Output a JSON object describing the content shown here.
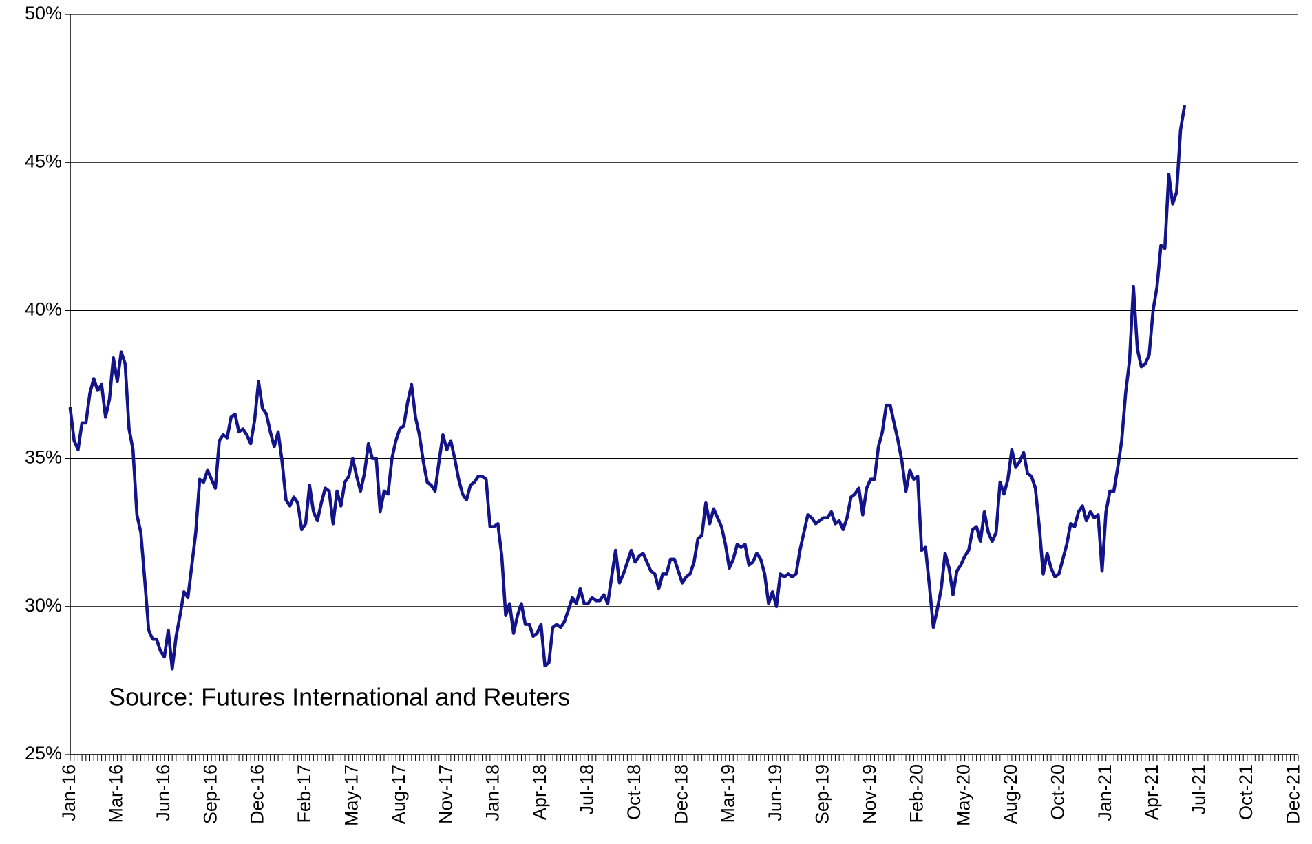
{
  "chart_data": {
    "type": "line",
    "annotation": "Source: Futures International and Reuters",
    "categories": [
      "Jan-16",
      null,
      null,
      null,
      null,
      null,
      null,
      null,
      null,
      null,
      null,
      null,
      "Mar-16",
      null,
      null,
      null,
      null,
      null,
      null,
      null,
      null,
      null,
      null,
      null,
      "Jun-16",
      null,
      null,
      null,
      null,
      null,
      null,
      null,
      null,
      null,
      null,
      null,
      "Sep-16",
      null,
      null,
      null,
      null,
      null,
      null,
      null,
      null,
      null,
      null,
      null,
      "Dec-16",
      null,
      null,
      null,
      null,
      null,
      null,
      null,
      null,
      null,
      null,
      null,
      "Feb-17",
      null,
      null,
      null,
      null,
      null,
      null,
      null,
      null,
      null,
      null,
      null,
      "May-17",
      null,
      null,
      null,
      null,
      null,
      null,
      null,
      null,
      null,
      null,
      null,
      "Aug-17",
      null,
      null,
      null,
      null,
      null,
      null,
      null,
      null,
      null,
      null,
      null,
      "Nov-17",
      null,
      null,
      null,
      null,
      null,
      null,
      null,
      null,
      null,
      null,
      null,
      "Jan-18",
      null,
      null,
      null,
      null,
      null,
      null,
      null,
      null,
      null,
      null,
      null,
      "Apr-18",
      null,
      null,
      null,
      null,
      null,
      null,
      null,
      null,
      null,
      null,
      null,
      "Jul-18",
      null,
      null,
      null,
      null,
      null,
      null,
      null,
      null,
      null,
      null,
      null,
      "Oct-18",
      null,
      null,
      null,
      null,
      null,
      null,
      null,
      null,
      null,
      null,
      null,
      "Dec-18",
      null,
      null,
      null,
      null,
      null,
      null,
      null,
      null,
      null,
      null,
      null,
      "Mar-19",
      null,
      null,
      null,
      null,
      null,
      null,
      null,
      null,
      null,
      null,
      null,
      "Jun-19",
      null,
      null,
      null,
      null,
      null,
      null,
      null,
      null,
      null,
      null,
      null,
      "Sep-19",
      null,
      null,
      null,
      null,
      null,
      null,
      null,
      null,
      null,
      null,
      null,
      "Nov-19",
      null,
      null,
      null,
      null,
      null,
      null,
      null,
      null,
      null,
      null,
      null,
      "Feb-20",
      null,
      null,
      null,
      null,
      null,
      null,
      null,
      null,
      null,
      null,
      null,
      "May-20",
      null,
      null,
      null,
      null,
      null,
      null,
      null,
      null,
      null,
      null,
      null,
      "Aug-20",
      null,
      null,
      null,
      null,
      null,
      null,
      null,
      null,
      null,
      null,
      null,
      "Oct-20",
      null,
      null,
      null,
      null,
      null,
      null,
      null,
      null,
      null,
      null,
      null,
      "Jan-21",
      null,
      null,
      null,
      null,
      null,
      null,
      null,
      null,
      null,
      null,
      null,
      "Apr-21",
      null,
      null,
      null,
      null,
      null,
      null,
      null,
      null,
      null,
      null,
      null,
      "Jul-21",
      null,
      null,
      null,
      null,
      null,
      null,
      null,
      null,
      null,
      null,
      null,
      "Oct-21",
      null,
      null,
      null,
      null,
      null,
      null,
      null,
      null,
      null,
      null,
      null,
      "Dec-21",
      null
    ],
    "values": [
      36.7,
      35.6,
      35.3,
      36.2,
      36.2,
      37.2,
      37.7,
      37.3,
      37.5,
      36.4,
      37.0,
      38.4,
      37.6,
      38.6,
      38.2,
      36.0,
      35.3,
      33.1,
      32.5,
      30.9,
      29.2,
      28.9,
      28.9,
      28.5,
      28.3,
      29.2,
      27.9,
      29.0,
      29.7,
      30.5,
      30.3,
      31.4,
      32.5,
      34.3,
      34.2,
      34.6,
      34.3,
      34.0,
      35.6,
      35.8,
      35.7,
      36.4,
      36.5,
      35.9,
      36.0,
      35.8,
      35.5,
      36.3,
      37.6,
      36.7,
      36.5,
      35.9,
      35.4,
      35.9,
      34.9,
      33.6,
      33.4,
      33.7,
      33.5,
      32.6,
      32.8,
      34.1,
      33.2,
      32.9,
      33.5,
      34.0,
      33.9,
      32.8,
      33.9,
      33.4,
      34.2,
      34.4,
      35.0,
      34.4,
      33.9,
      34.5,
      35.5,
      35.0,
      35.0,
      33.2,
      33.9,
      33.8,
      35.0,
      35.6,
      36.0,
      36.1,
      36.9,
      37.5,
      36.4,
      35.8,
      34.9,
      34.2,
      34.1,
      33.9,
      34.9,
      35.8,
      35.3,
      35.6,
      35.0,
      34.3,
      33.8,
      33.6,
      34.1,
      34.2,
      34.4,
      34.4,
      34.3,
      32.7,
      32.7,
      32.8,
      31.7,
      29.7,
      30.1,
      29.1,
      29.7,
      30.1,
      29.4,
      29.4,
      29.0,
      29.1,
      29.4,
      28.0,
      28.1,
      29.3,
      29.4,
      29.3,
      29.5,
      29.9,
      30.3,
      30.1,
      30.6,
      30.1,
      30.1,
      30.3,
      30.2,
      30.2,
      30.4,
      30.1,
      31.0,
      31.9,
      30.8,
      31.1,
      31.5,
      31.9,
      31.5,
      31.7,
      31.8,
      31.5,
      31.2,
      31.1,
      30.6,
      31.1,
      31.1,
      31.6,
      31.6,
      31.2,
      30.8,
      31.0,
      31.1,
      31.5,
      32.3,
      32.4,
      33.5,
      32.8,
      33.3,
      33.0,
      32.7,
      32.1,
      31.3,
      31.6,
      32.1,
      32.0,
      32.1,
      31.4,
      31.5,
      31.8,
      31.6,
      31.1,
      30.1,
      30.5,
      30.0,
      31.1,
      31.0,
      31.1,
      31.0,
      31.1,
      31.9,
      32.5,
      33.1,
      33.0,
      32.8,
      32.9,
      33.0,
      33.0,
      33.2,
      32.8,
      32.9,
      32.6,
      33.0,
      33.7,
      33.8,
      34.0,
      33.1,
      34.0,
      34.3,
      34.3,
      35.4,
      35.9,
      36.8,
      36.8,
      36.2,
      35.6,
      34.9,
      33.9,
      34.6,
      34.3,
      34.4,
      31.9,
      32.0,
      30.7,
      29.3,
      29.9,
      30.6,
      31.8,
      31.3,
      30.4,
      31.2,
      31.4,
      31.7,
      31.9,
      32.6,
      32.7,
      32.2,
      33.2,
      32.5,
      32.2,
      32.5,
      34.2,
      33.8,
      34.3,
      35.3,
      34.7,
      34.9,
      35.2,
      34.5,
      34.4,
      34.0,
      32.7,
      31.1,
      31.8,
      31.3,
      31.0,
      31.1,
      31.6,
      32.1,
      32.8,
      32.7,
      33.2,
      33.4,
      32.9,
      33.2,
      33.0,
      33.1,
      31.2,
      33.2,
      33.9,
      33.9,
      34.7,
      35.6,
      37.2,
      38.3,
      40.8,
      38.7,
      38.1,
      38.2,
      38.5,
      40.0,
      40.8,
      42.2,
      42.1,
      44.6,
      43.6,
      44.0,
      46.1,
      46.9,
      null,
      null,
      null,
      null,
      null,
      null,
      null,
      null,
      null,
      null,
      null,
      null,
      null,
      null,
      null,
      null,
      null,
      null,
      null,
      null,
      null,
      null,
      null,
      null,
      null,
      null,
      null,
      null,
      null
    ],
    "color": "#14148a",
    "ylim": [
      25,
      50
    ],
    "yticks": [
      {
        "value": 25,
        "label": "25%"
      },
      {
        "value": 30,
        "label": "30%"
      },
      {
        "value": 35,
        "label": "35%"
      },
      {
        "value": 40,
        "label": "40%"
      },
      {
        "value": 45,
        "label": "45%"
      },
      {
        "value": 50,
        "label": "50%"
      }
    ],
    "grid": true
  }
}
